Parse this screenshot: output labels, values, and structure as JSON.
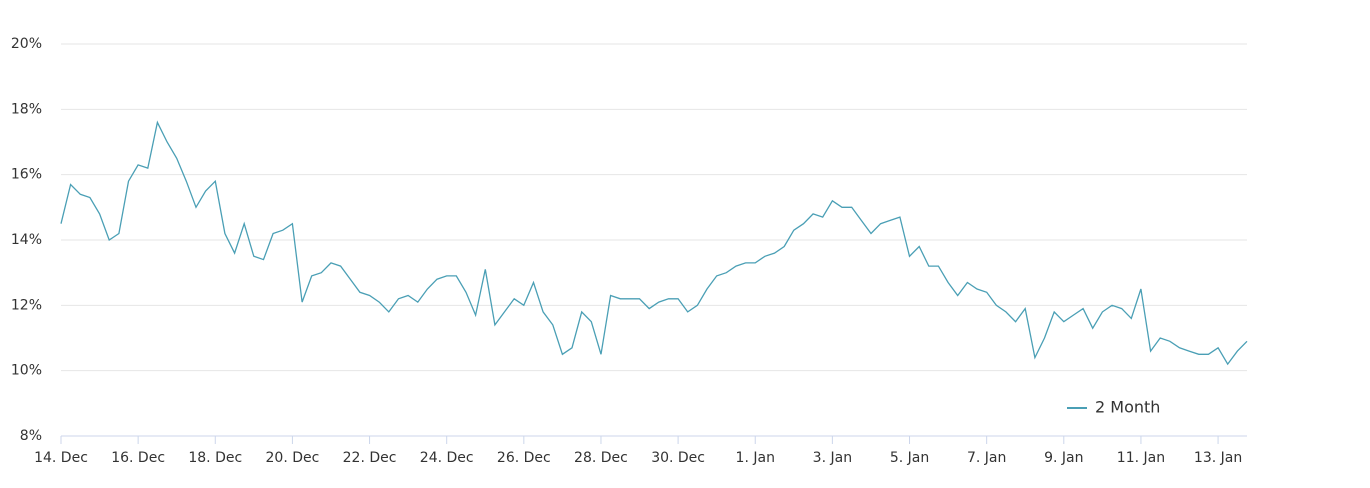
{
  "chart_data": {
    "type": "line",
    "categories": [
      "14. Dec",
      null,
      null,
      null,
      null,
      null,
      null,
      null,
      "16. Dec",
      null,
      null,
      null,
      null,
      null,
      null,
      null,
      "18. Dec",
      null,
      null,
      null,
      null,
      null,
      null,
      null,
      "20. Dec",
      null,
      null,
      null,
      null,
      null,
      null,
      null,
      "22. Dec",
      null,
      null,
      null,
      null,
      null,
      null,
      null,
      "24. Dec",
      null,
      null,
      null,
      null,
      null,
      null,
      null,
      "26. Dec",
      null,
      null,
      null,
      null,
      null,
      null,
      null,
      "28. Dec",
      null,
      null,
      null,
      null,
      null,
      null,
      null,
      "30. Dec",
      null,
      null,
      null,
      null,
      null,
      null,
      null,
      "1. Jan",
      null,
      null,
      null,
      null,
      null,
      null,
      null,
      "3. Jan",
      null,
      null,
      null,
      null,
      null,
      null,
      null,
      "5. Jan",
      null,
      null,
      null,
      null,
      null,
      null,
      null,
      "7. Jan",
      null,
      null,
      null,
      null,
      null,
      null,
      null,
      "9. Jan",
      null,
      null,
      null,
      null,
      null,
      null,
      null,
      "11. Jan",
      null,
      null,
      null,
      null,
      null,
      null,
      null,
      "13. Jan",
      null,
      null,
      null
    ],
    "series": [
      {
        "name": "2 Month",
        "color": "#4a9fb5",
        "values": [
          14.5,
          15.7,
          15.4,
          15.3,
          14.8,
          14.0,
          14.2,
          15.8,
          16.3,
          16.2,
          17.6,
          17.0,
          16.5,
          15.8,
          15.0,
          15.5,
          15.8,
          14.2,
          13.6,
          14.5,
          13.5,
          13.4,
          14.2,
          14.3,
          14.5,
          12.1,
          12.9,
          13.0,
          13.3,
          13.2,
          12.8,
          12.4,
          12.3,
          12.1,
          11.8,
          12.2,
          12.3,
          12.1,
          12.5,
          12.8,
          12.9,
          12.9,
          12.4,
          11.7,
          13.1,
          11.4,
          11.8,
          12.2,
          12.0,
          12.7,
          11.8,
          11.4,
          10.5,
          10.7,
          11.8,
          11.5,
          10.5,
          12.3,
          12.2,
          12.2,
          12.2,
          11.9,
          12.1,
          12.2,
          12.2,
          11.8,
          12.0,
          12.5,
          12.9,
          13.0,
          13.2,
          13.3,
          13.3,
          13.5,
          13.6,
          13.8,
          14.3,
          14.5,
          14.8,
          14.7,
          15.2,
          15.0,
          15.0,
          14.6,
          14.2,
          14.5,
          14.6,
          14.7,
          13.5,
          13.8,
          13.2,
          13.2,
          12.7,
          12.3,
          12.7,
          12.5,
          12.4,
          12.0,
          11.8,
          11.5,
          11.9,
          10.4,
          11.0,
          11.8,
          11.5,
          11.7,
          11.9,
          11.3,
          11.8,
          12.0,
          11.9,
          11.6,
          12.5,
          10.6,
          11.0,
          10.9,
          10.7,
          10.6,
          10.5,
          10.5,
          10.7,
          10.2,
          10.6,
          10.9
        ]
      }
    ],
    "ylim": [
      8,
      20
    ],
    "yticks": [
      {
        "value": 8,
        "label": "8%"
      },
      {
        "value": 10,
        "label": "10%"
      },
      {
        "value": 12,
        "label": "12%"
      },
      {
        "value": 14,
        "label": "14%"
      },
      {
        "value": 16,
        "label": "16%"
      },
      {
        "value": 18,
        "label": "18%"
      },
      {
        "value": 20,
        "label": "20%"
      }
    ],
    "grid": true,
    "legend": "bottom-right"
  }
}
